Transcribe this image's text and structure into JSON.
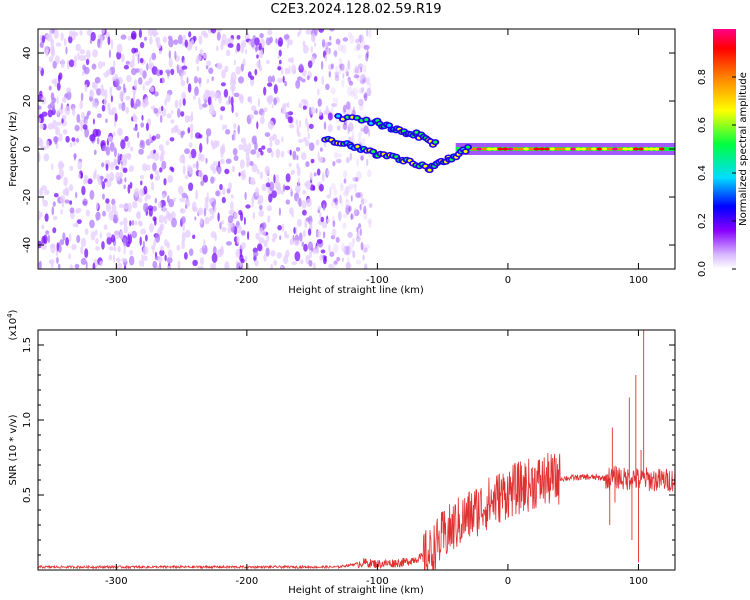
{
  "title": "C2E3.2024.128.02.59.R19",
  "chart_data": [
    {
      "type": "heatmap",
      "xlabel": "Height of straight line (km)",
      "ylabel": "Frequency (Hz)",
      "xlim": [
        -360,
        128
      ],
      "ylim": [
        -50,
        50
      ],
      "xticks": [
        -300,
        -200,
        -100,
        0,
        100
      ],
      "yticks": [
        -40,
        -20,
        0,
        20,
        40
      ],
      "colorbar": {
        "label": "Normalized spectral amplitude",
        "range": [
          0,
          1
        ],
        "ticks": [
          "0.0",
          "0.2",
          "0.4",
          "0.6",
          "0.8"
        ],
        "colormap": [
          "#ffffff",
          "#8800ff",
          "#0000ff",
          "#00e0ff",
          "#00ff40",
          "#ffff00",
          "#ff8000",
          "#ff0000",
          "#ff0088"
        ]
      },
      "features": [
        {
          "name": "noise band",
          "x_range": [
            -360,
            -130
          ],
          "freq_range": [
            -50,
            50
          ],
          "amplitude": 0.15
        },
        {
          "name": "descending trace",
          "points": [
            [
              -140,
              4
            ],
            [
              -120,
              1
            ],
            [
              -100,
              -2
            ],
            [
              -80,
              -5
            ],
            [
              -60,
              -8
            ],
            [
              -45,
              -4
            ],
            [
              -30,
              0
            ]
          ],
          "amplitude": 0.5
        },
        {
          "name": "upper trace",
          "points": [
            [
              -130,
              13
            ],
            [
              -100,
              11
            ],
            [
              -85,
              8
            ],
            [
              -70,
              6
            ],
            [
              -55,
              2
            ]
          ],
          "amplitude": 0.45
        },
        {
          "name": "zero-frequency carrier",
          "x_range": [
            -40,
            128
          ],
          "freq": 0,
          "amplitude": 0.9
        }
      ]
    },
    {
      "type": "line",
      "xlabel": "Height of straight line (km)",
      "ylabel": "SNR (10 * v/v)",
      "yscale_label": "(x10",
      "yscale_exp": "4",
      "xlim": [
        -360,
        128
      ],
      "ylim": [
        0,
        1.6
      ],
      "xticks": [
        -300,
        -200,
        -100,
        0,
        100
      ],
      "yticks": [
        "0.5",
        "1.0",
        "1.5"
      ],
      "color": "#e03030",
      "series": [
        {
          "x": [
            -360,
            -300,
            -200,
            -130,
            -110,
            -100,
            -80,
            -60,
            -50,
            -40,
            -30,
            -20,
            -10,
            0,
            10,
            20,
            30,
            40,
            60,
            80,
            85,
            90,
            95,
            100,
            105,
            110,
            128
          ],
          "y": [
            0.02,
            0.02,
            0.02,
            0.02,
            0.05,
            0.04,
            0.05,
            0.1,
            0.22,
            0.3,
            0.36,
            0.42,
            0.47,
            0.52,
            0.55,
            0.58,
            0.6,
            0.61,
            0.62,
            0.61,
            0.62,
            0.6,
            0.62,
            0.6,
            0.61,
            0.6,
            0.6
          ]
        }
      ],
      "spikes": [
        {
          "x": 78,
          "y": 0.3
        },
        {
          "x": 80,
          "y": 0.95
        },
        {
          "x": 82,
          "y": 0.45
        },
        {
          "x": 93,
          "y": 1.15
        },
        {
          "x": 95,
          "y": 0.2
        },
        {
          "x": 98,
          "y": 1.3
        },
        {
          "x": 100,
          "y": 0.05
        },
        {
          "x": 102,
          "y": 0.8
        },
        {
          "x": 104,
          "y": 1.6
        }
      ]
    }
  ]
}
